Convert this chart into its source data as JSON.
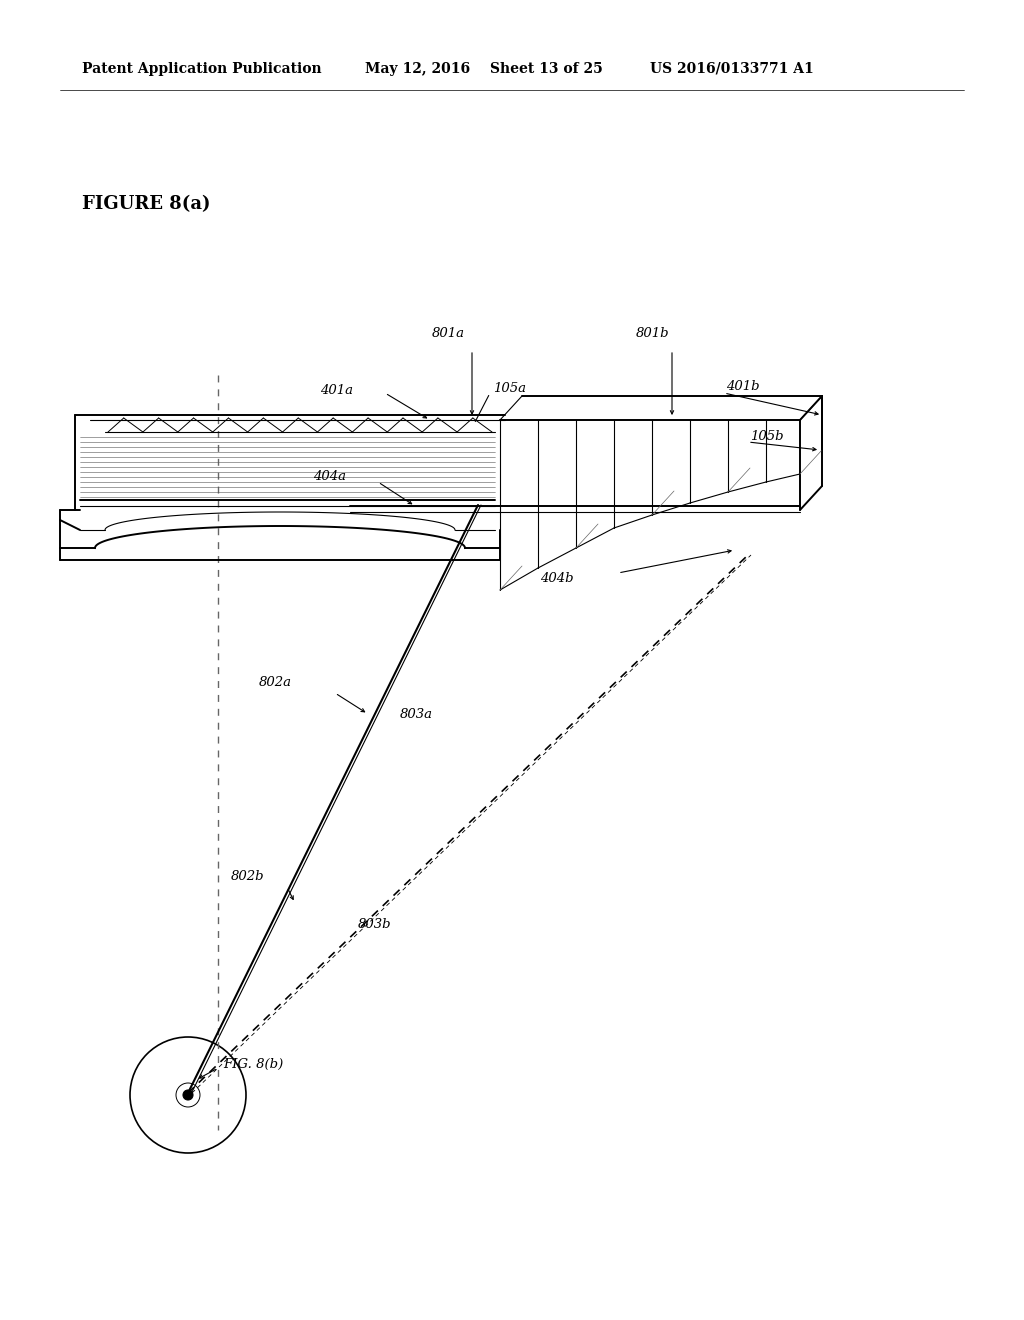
{
  "bg_color": "#ffffff",
  "header_text": "Patent Application Publication",
  "header_date": "May 12, 2016",
  "header_sheet": "Sheet 13 of 25",
  "header_patent": "US 2016/0133771 A1",
  "figure_label": "FIGURE 8(a)",
  "fig8b_label": "FIG. 8(b)",
  "label_fontsize": 9.5,
  "header_fontsize": 10,
  "figure_label_fontsize": 13
}
